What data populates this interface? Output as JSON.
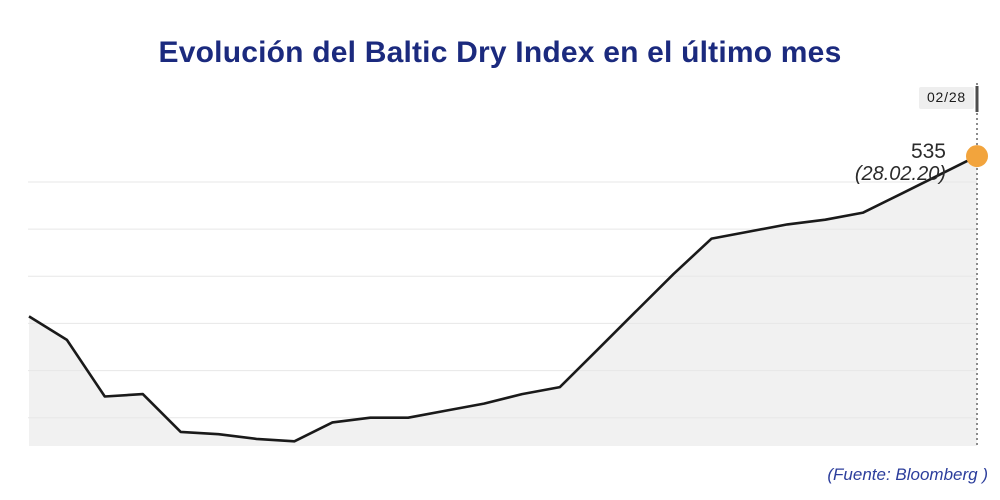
{
  "header": {
    "title": "Evolución del Baltic Dry Index en el último mes",
    "color": "#1b2a7e"
  },
  "labels": {
    "crosshair": "02/28",
    "end_value": "535",
    "end_date": "(28.02.20)"
  },
  "source_note": {
    "text": "(Fuente: Bloomberg )",
    "color": "#2c3e9c"
  },
  "chart_data": {
    "type": "area",
    "title": "Evolución del Baltic Dry Index en el último mes",
    "series": [
      {
        "name": "Baltic Dry Index",
        "values": [
          467,
          457,
          433,
          434,
          418,
          417,
          415,
          414,
          422,
          424,
          424,
          427,
          430,
          434,
          437,
          453,
          469,
          485,
          500,
          503,
          506,
          508,
          511,
          519,
          527,
          535
        ]
      }
    ],
    "x": [
      1,
      2,
      3,
      4,
      5,
      6,
      7,
      8,
      9,
      10,
      11,
      12,
      13,
      14,
      15,
      16,
      17,
      18,
      19,
      20,
      21,
      22,
      23,
      24,
      25,
      26
    ],
    "n_points": 26,
    "ylim": [
      412,
      566
    ],
    "gridline_values": [
      424,
      444,
      464,
      484,
      504,
      524
    ],
    "xlabel": "",
    "ylabel": "",
    "x_axis_labels": "none",
    "y_axis_labels": "none",
    "legend": "none",
    "grid": "horizontal",
    "last_point": {
      "value": 535,
      "value_label": "535",
      "date_label": "(28.02.20)",
      "crosshair_label": "02/28"
    },
    "colors": {
      "line": "#1a1a1a",
      "area_fill": "#f1f1f1",
      "gridline": "#e7e7e7",
      "crosshair": "#8c8c8c",
      "crosshair_tick": "#4d4d4d",
      "marker": "#f2a43d",
      "label_text": "#2b2b2b"
    }
  }
}
